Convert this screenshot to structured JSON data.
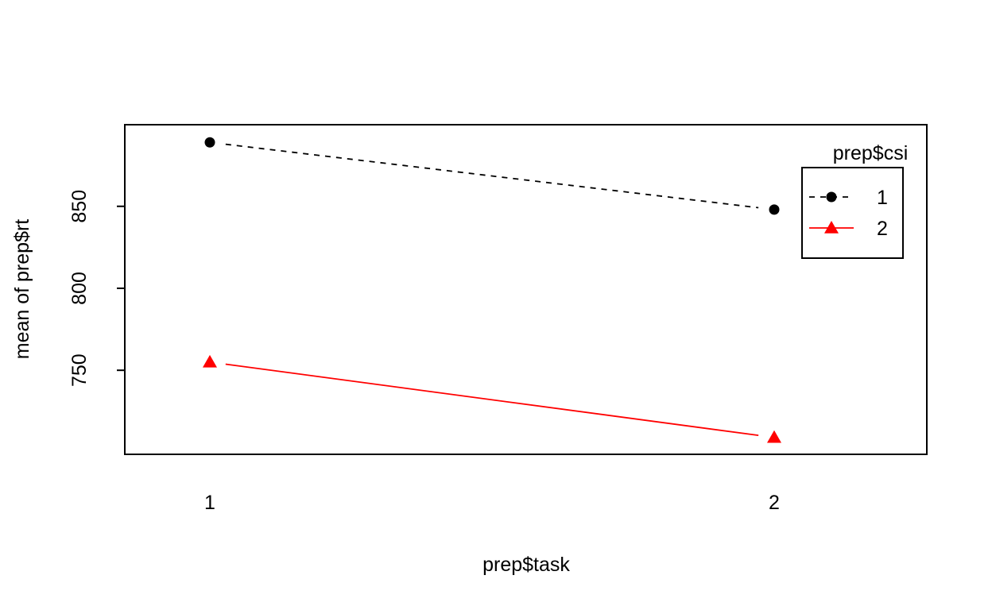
{
  "chart_data": {
    "type": "line",
    "xlabel": "prep$task",
    "ylabel": "mean of  prep$rt",
    "categories": [
      "1",
      "2"
    ],
    "yticks": [
      750,
      800,
      850
    ],
    "ylim": [
      706,
      893
    ],
    "legend": {
      "title": "prep$csi",
      "placement": "top-right"
    },
    "series": [
      {
        "name": "1",
        "values": [
          889,
          848
        ],
        "color": "#000000",
        "line_style": "dashed",
        "marker": "circle"
      },
      {
        "name": "2",
        "values": [
          755,
          709
        ],
        "color": "#ff0000",
        "line_style": "solid",
        "marker": "triangle"
      }
    ],
    "grid": false
  }
}
